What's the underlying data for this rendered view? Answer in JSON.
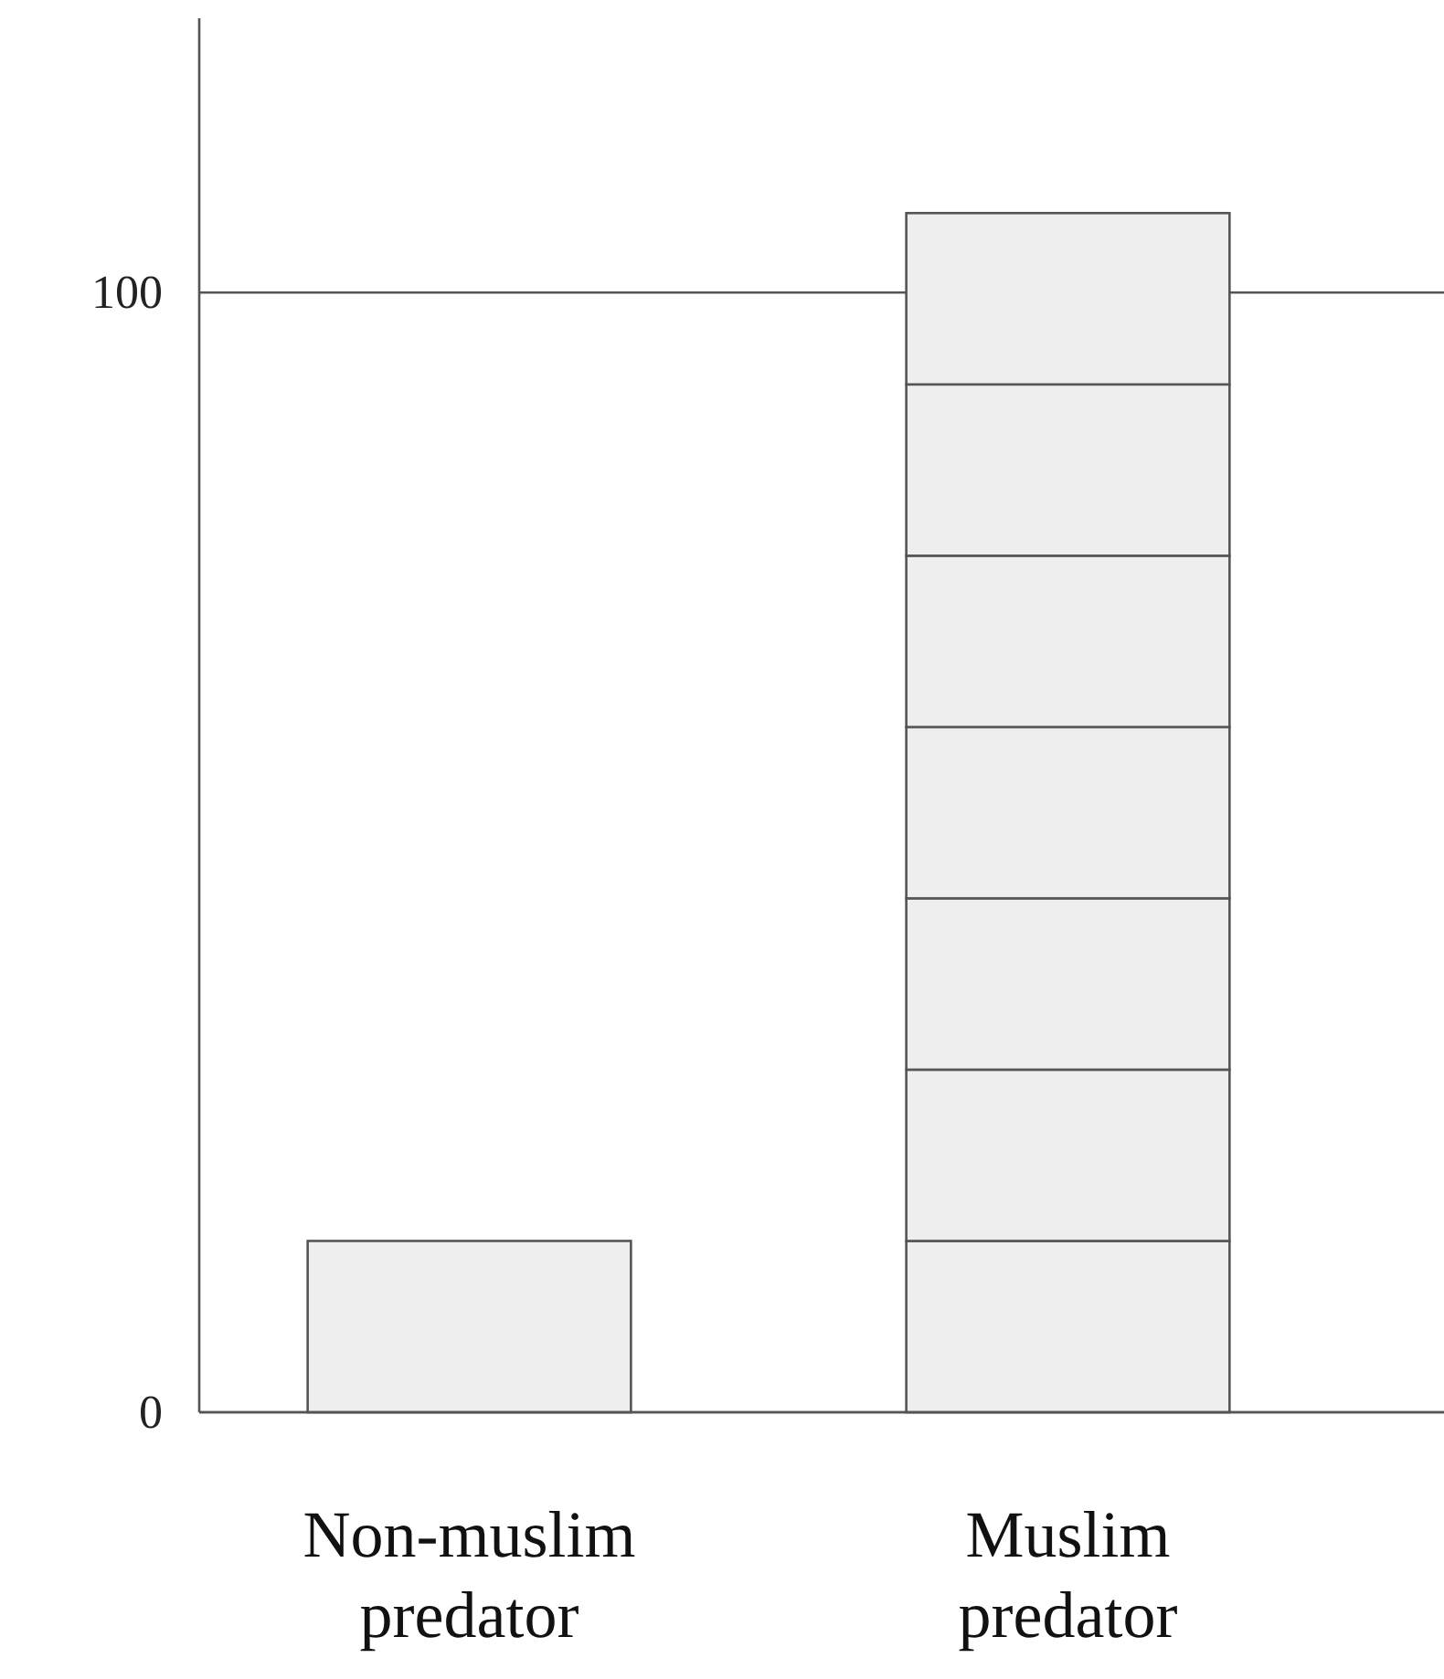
{
  "chart_data": {
    "type": "bar",
    "stacked": true,
    "categories": [
      "Non-muslim predator",
      "Muslim predator"
    ],
    "series": [
      {
        "color": "#eeeeee",
        "values": [
          15.3,
          15.3
        ]
      },
      {
        "color": "#eeeeee",
        "values": [
          null,
          15.3
        ]
      },
      {
        "color": "#eeeeee",
        "values": [
          null,
          15.3
        ]
      },
      {
        "color": "#eeeeee",
        "values": [
          null,
          15.3
        ]
      },
      {
        "color": "#eeeeee",
        "values": [
          null,
          15.3
        ]
      },
      {
        "color": "#eeeeee",
        "values": [
          null,
          15.3
        ]
      },
      {
        "color": "#eeeeee",
        "values": [
          null,
          15.3
        ]
      }
    ],
    "ylim": [
      0,
      124.5
    ],
    "yticks": [
      0,
      100
    ],
    "grid": "y"
  }
}
